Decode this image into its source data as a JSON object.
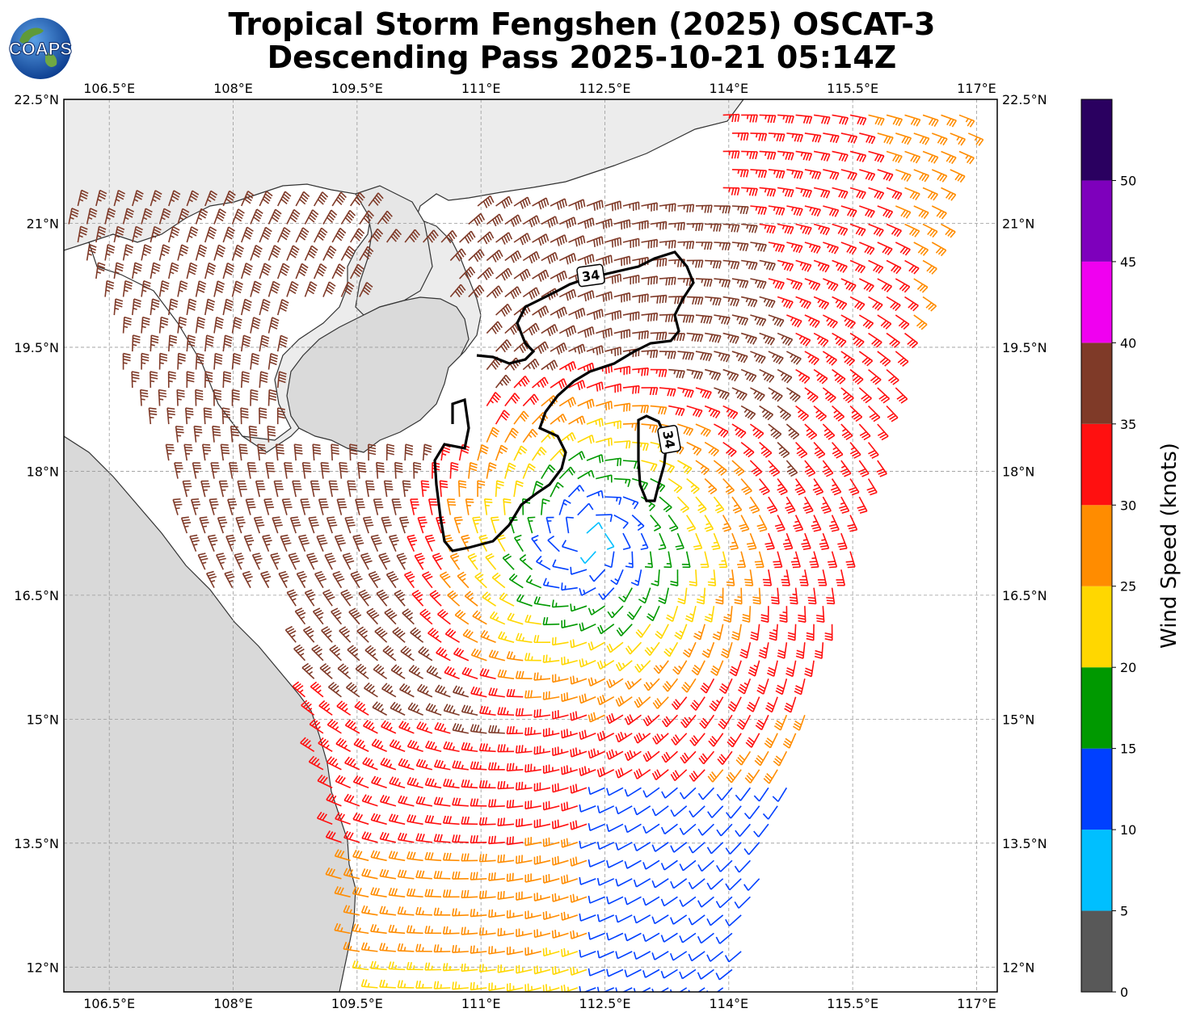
{
  "title_line1": "Tropical Storm Fengshen (2025) OSCAT-3",
  "title_line2": "Descending Pass 2025-10-21 05:14Z",
  "logo_text": "COAPS",
  "lon_labels": [
    "106.5°E",
    "108°E",
    "109.5°E",
    "111°E",
    "112.5°E",
    "114°E",
    "115.5°E",
    "117°E"
  ],
  "lat_labels": [
    "22.5°N",
    "21°N",
    "19.5°N",
    "18°N",
    "16.5°N",
    "15°N",
    "13.5°N",
    "12°N"
  ],
  "lon_values": [
    106.5,
    108,
    109.5,
    111,
    112.5,
    114,
    115.5,
    117
  ],
  "lat_values": [
    22.5,
    21,
    19.5,
    18,
    16.5,
    15,
    13.5,
    12
  ],
  "extent": {
    "lon_min": 105.95,
    "lon_max": 117.25,
    "lat_min": 11.7,
    "lat_max": 22.5
  },
  "contour_label": "34",
  "colorbar": {
    "title": "Wind Speed (knots)",
    "bounds": [
      0,
      5,
      10,
      15,
      20,
      25,
      30,
      35,
      40,
      45,
      50,
      55
    ],
    "tick_labels": [
      "0",
      "5",
      "10",
      "15",
      "20",
      "25",
      "30",
      "35",
      "40",
      "45",
      "50"
    ],
    "colors": [
      "#585858",
      "#00bfff",
      "#0040ff",
      "#009900",
      "#ffd700",
      "#ff8c00",
      "#ff1010",
      "#7f3a28",
      "#f000f0",
      "#7e00bc",
      "#2a0060"
    ]
  },
  "storm_center": {
    "lon": 112.3,
    "lat": 17.2
  }
}
